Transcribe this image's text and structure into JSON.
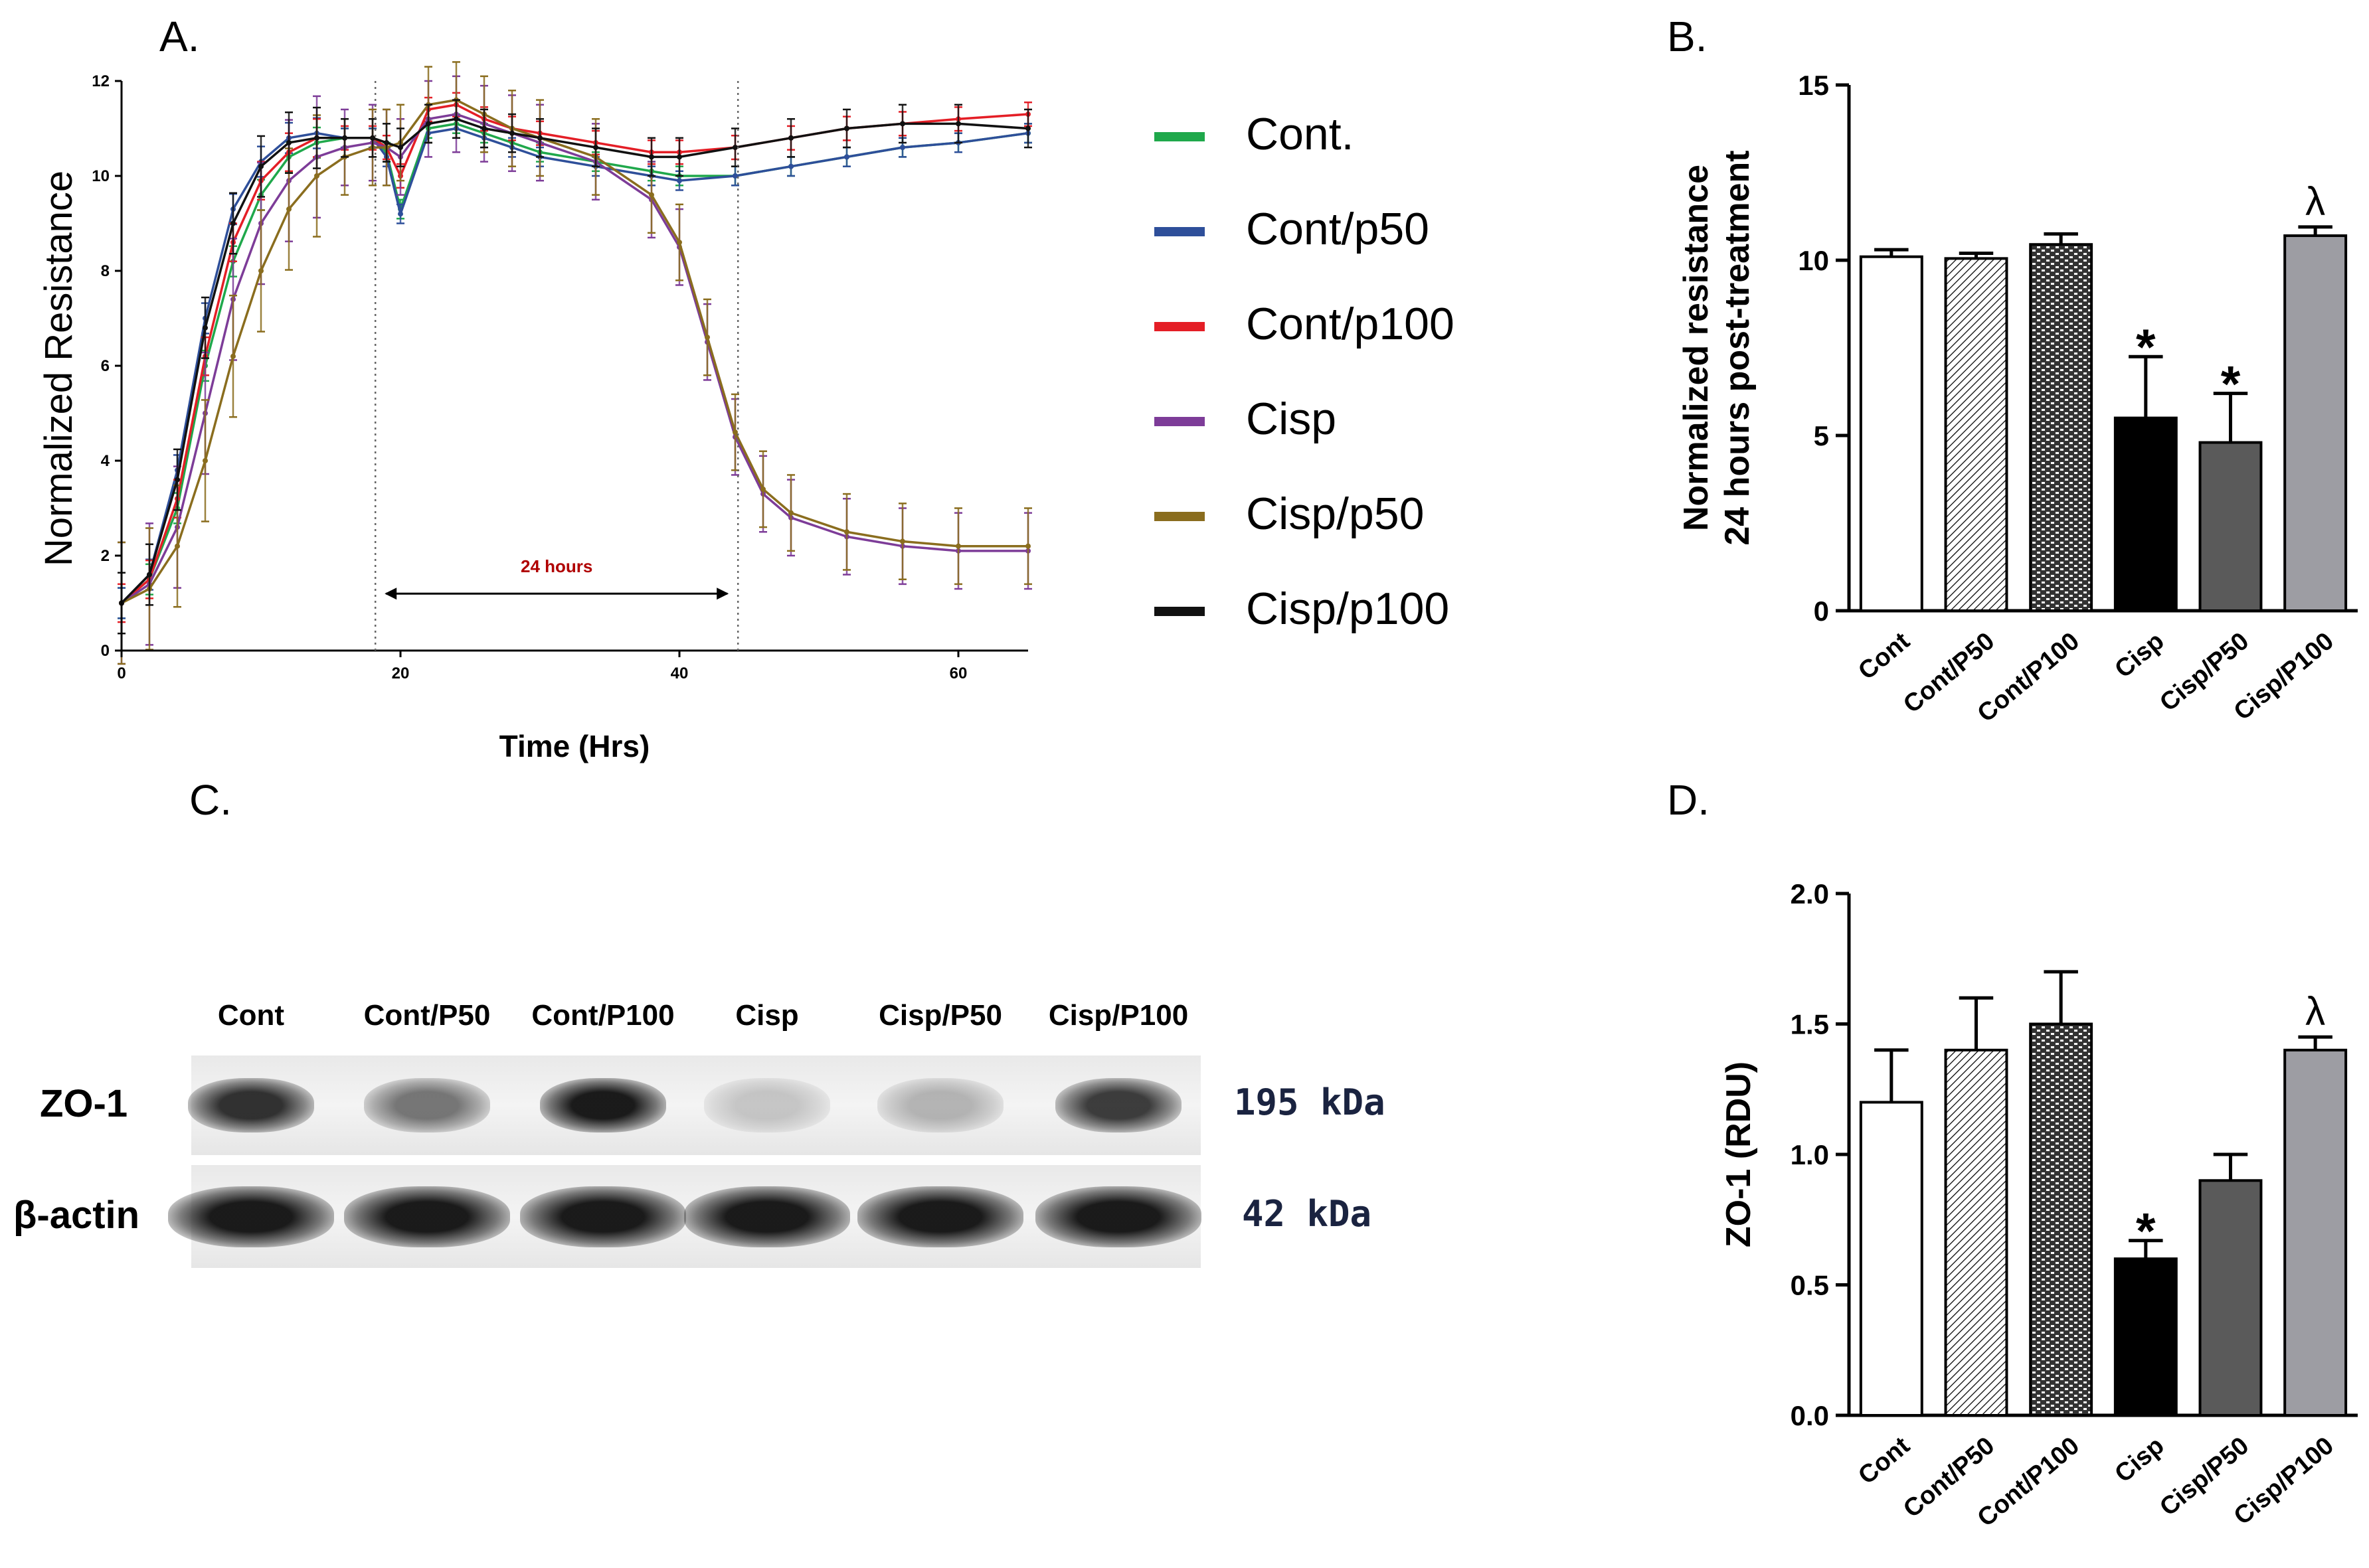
{
  "panels": {
    "a": "A.",
    "b": "B.",
    "c": "C.",
    "d": "D."
  },
  "chart_data": [
    {
      "type": "line",
      "panel": "A.",
      "xlabel": "Time (Hrs)",
      "ylabel": "Normalized Resistance",
      "xlim": [
        0,
        65
      ],
      "ylim": [
        0,
        12
      ],
      "xticks": [
        0,
        20,
        40,
        60
      ],
      "yticks": [
        0,
        2,
        4,
        6,
        8,
        10,
        12
      ],
      "annotation": "24 hours",
      "annotation_range": [
        18.2,
        44.2
      ],
      "legend_position": "right",
      "series": [
        {
          "name": "Cont.",
          "color": "#1fa84b",
          "x": [
            0,
            2,
            4,
            6,
            8,
            10,
            12,
            14,
            16,
            18,
            19,
            20,
            22,
            24,
            26,
            28,
            30,
            34,
            38,
            40,
            44,
            48,
            52,
            56,
            60,
            65
          ],
          "y": [
            1.0,
            1.5,
            3.0,
            6.0,
            8.2,
            9.6,
            10.4,
            10.7,
            10.8,
            10.8,
            10.5,
            9.3,
            11.0,
            11.1,
            10.9,
            10.7,
            10.5,
            10.3,
            10.1,
            10.0,
            10.0,
            10.2,
            10.4,
            10.6,
            10.7,
            10.9
          ],
          "error": 0.2
        },
        {
          "name": "Cont/p50",
          "color": "#2e4f9a",
          "x": [
            0,
            2,
            4,
            6,
            8,
            10,
            12,
            14,
            16,
            18,
            19,
            20,
            22,
            24,
            26,
            28,
            30,
            34,
            38,
            40,
            44,
            48,
            52,
            56,
            60,
            65
          ],
          "y": [
            1.0,
            1.6,
            3.8,
            7.0,
            9.3,
            10.3,
            10.8,
            10.9,
            10.8,
            10.8,
            10.4,
            9.2,
            10.9,
            11.0,
            10.8,
            10.6,
            10.4,
            10.2,
            10.0,
            9.9,
            10.0,
            10.2,
            10.4,
            10.6,
            10.7,
            10.9
          ],
          "error": 0.2
        },
        {
          "name": "Cont/p100",
          "color": "#e41e26",
          "x": [
            0,
            2,
            4,
            6,
            8,
            10,
            12,
            14,
            16,
            18,
            19,
            20,
            22,
            24,
            26,
            28,
            30,
            34,
            38,
            40,
            44,
            48,
            52,
            56,
            60,
            65
          ],
          "y": [
            1.0,
            1.5,
            3.2,
            6.2,
            8.6,
            9.9,
            10.5,
            10.8,
            10.8,
            10.8,
            10.6,
            10.0,
            11.4,
            11.5,
            11.2,
            11.0,
            10.9,
            10.7,
            10.5,
            10.5,
            10.6,
            10.8,
            11.0,
            11.1,
            11.2,
            11.3
          ],
          "error": 0.25
        },
        {
          "name": "Cisp",
          "color": "#7d3c98",
          "x": [
            0,
            2,
            4,
            6,
            8,
            10,
            12,
            14,
            16,
            18,
            19,
            20,
            22,
            24,
            26,
            28,
            30,
            34,
            38,
            40,
            42,
            44,
            46,
            48,
            52,
            56,
            60,
            65
          ],
          "y": [
            1.0,
            1.4,
            2.6,
            5.0,
            7.4,
            9.0,
            9.9,
            10.4,
            10.6,
            10.7,
            10.6,
            10.4,
            11.2,
            11.3,
            11.1,
            10.9,
            10.7,
            10.3,
            9.5,
            8.5,
            6.5,
            4.5,
            3.3,
            2.8,
            2.4,
            2.2,
            2.1,
            2.1
          ],
          "error": 0.8
        },
        {
          "name": "Cisp/p50",
          "color": "#8a6d1e",
          "x": [
            0,
            2,
            4,
            6,
            8,
            10,
            12,
            14,
            16,
            18,
            19,
            20,
            22,
            24,
            26,
            28,
            30,
            34,
            38,
            40,
            42,
            44,
            46,
            48,
            52,
            56,
            60,
            65
          ],
          "y": [
            1.0,
            1.3,
            2.2,
            4.0,
            6.2,
            8.0,
            9.3,
            10.0,
            10.4,
            10.6,
            10.6,
            10.7,
            11.5,
            11.6,
            11.3,
            11.0,
            10.8,
            10.4,
            9.6,
            8.6,
            6.6,
            4.6,
            3.4,
            2.9,
            2.5,
            2.3,
            2.2,
            2.2
          ],
          "error": 0.8
        },
        {
          "name": "Cisp/p100",
          "color": "#111111",
          "x": [
            0,
            2,
            4,
            6,
            8,
            10,
            12,
            14,
            16,
            18,
            19,
            20,
            22,
            24,
            26,
            28,
            30,
            34,
            38,
            40,
            44,
            48,
            52,
            56,
            60,
            65
          ],
          "y": [
            1.0,
            1.6,
            3.6,
            6.8,
            9.0,
            10.2,
            10.7,
            10.8,
            10.8,
            10.8,
            10.7,
            10.6,
            11.1,
            11.2,
            11.0,
            10.9,
            10.8,
            10.6,
            10.4,
            10.4,
            10.6,
            10.8,
            11.0,
            11.1,
            11.1,
            11.0
          ],
          "error": 0.4
        }
      ]
    },
    {
      "type": "bar",
      "panel": "B.",
      "ylabel": "Normalized resistance\n24 hours post-treatment",
      "ylim": [
        0,
        15
      ],
      "yticks": [
        0,
        5,
        10,
        15
      ],
      "categories": [
        "Cont",
        "Cont/P50",
        "Cont/P100",
        "Cisp",
        "Cisp/P50",
        "Cisp/P100"
      ],
      "values": [
        10.1,
        10.05,
        10.45,
        5.5,
        4.8,
        10.7
      ],
      "errors": [
        0.2,
        0.15,
        0.3,
        1.75,
        1.4,
        0.25
      ],
      "marks": [
        "",
        "",
        "",
        "*",
        "*",
        "λ"
      ],
      "fills": [
        "white",
        "hatch-light",
        "brick",
        "#000000",
        "#5a5a5a",
        "#9d9da3"
      ]
    },
    {
      "type": "bar",
      "panel": "D.",
      "ylabel": "ZO-1 (RDU)",
      "ylim": [
        0,
        2.0
      ],
      "yticks": [
        "0.0",
        "0.5",
        "1.0",
        "1.5",
        "2.0"
      ],
      "categories": [
        "Cont",
        "Cont/P50",
        "Cont/P100",
        "Cisp",
        "Cisp/P50",
        "Cisp/P100"
      ],
      "values": [
        1.2,
        1.4,
        1.5,
        0.6,
        0.9,
        1.4
      ],
      "errors": [
        0.2,
        0.2,
        0.2,
        0.07,
        0.1,
        0.05
      ],
      "marks": [
        "",
        "",
        "",
        "*",
        "",
        "λ"
      ],
      "fills": [
        "white",
        "hatch-light",
        "brick",
        "#000000",
        "#5a5a5a",
        "#9d9da3"
      ]
    }
  ],
  "blot": {
    "lanes": [
      "Cont",
      "Cont/P50",
      "Cont/P100",
      "Cisp",
      "Cisp/P50",
      "Cisp/P100"
    ],
    "rows": [
      {
        "label": "ZO-1",
        "kda": "195 kDa",
        "intensity": [
          0.85,
          0.55,
          0.95,
          0.2,
          0.28,
          0.8
        ]
      },
      {
        "label": "β-actin",
        "kda": "42 kDa",
        "intensity": [
          0.95,
          0.95,
          0.95,
          0.95,
          0.95,
          0.95
        ]
      }
    ]
  }
}
